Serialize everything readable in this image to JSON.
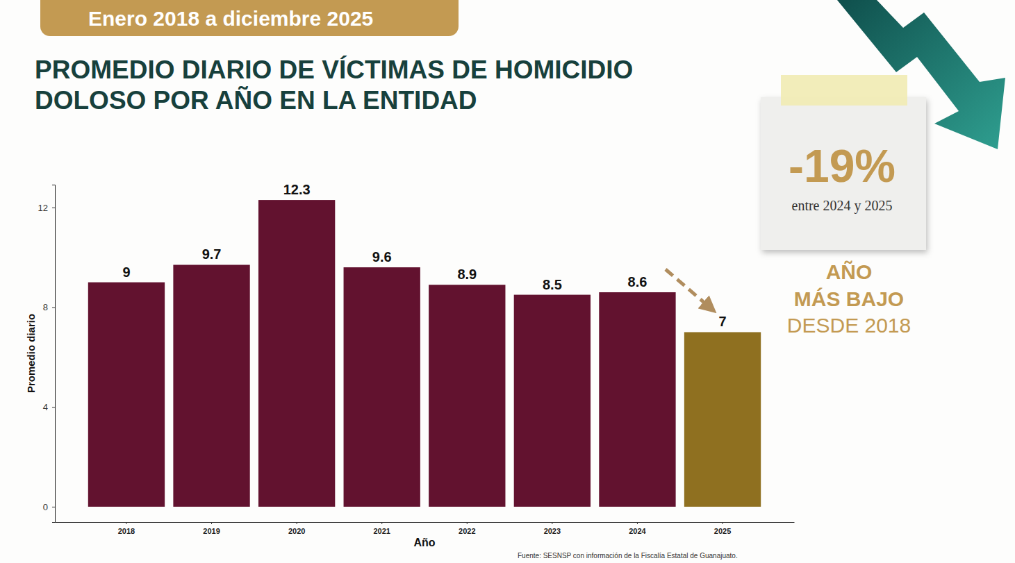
{
  "chart_data": {
    "type": "bar",
    "subtitle": "Enero 2018 a diciembre 2025",
    "title": "PROMEDIO DIARIO DE VÍCTIMAS DE HOMICIDIO DOLOSO POR AÑO EN LA ENTIDAD",
    "x_label": "Año",
    "y_label": "Promedio diario",
    "categories": [
      "2018",
      "2019",
      "2020",
      "2021",
      "2022",
      "2023",
      "2024",
      "2025"
    ],
    "values": [
      9,
      9.7,
      12.3,
      9.6,
      8.9,
      8.5,
      8.6,
      7
    ],
    "colors": [
      "#62122f",
      "#62122f",
      "#62122f",
      "#62122f",
      "#62122f",
      "#62122f",
      "#62122f",
      "#8f7020"
    ],
    "ylim": [
      -0.615,
      12.915
    ],
    "yticks": [
      0,
      4,
      8,
      12
    ],
    "grid": false,
    "data_labels": true,
    "annotations": [
      "-19%",
      "entre 2024 y 2025",
      "AÑO",
      "MÁS BAJO",
      "DESDE 2018"
    ],
    "source": "Fuente: SESNSP con información de la Fiscalía Estatal de Guanajuato."
  }
}
